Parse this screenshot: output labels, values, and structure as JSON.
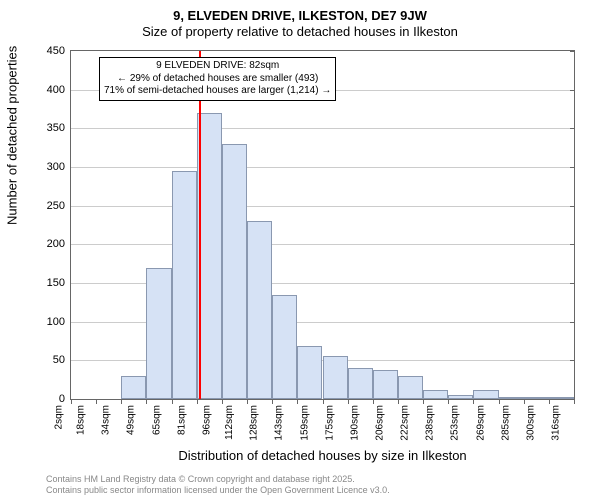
{
  "title_line1": "9, ELVEDEN DRIVE, ILKESTON, DE7 9JW",
  "title_line2": "Size of property relative to detached houses in Ilkeston",
  "chart": {
    "type": "bar",
    "ylabel": "Number of detached properties",
    "xlabel": "Distribution of detached houses by size in Ilkeston",
    "ylim": [
      0,
      450
    ],
    "ytick_step": 50,
    "xtick_labels": [
      "2sqm",
      "18sqm",
      "34sqm",
      "49sqm",
      "65sqm",
      "81sqm",
      "96sqm",
      "112sqm",
      "128sqm",
      "143sqm",
      "159sqm",
      "175sqm",
      "190sqm",
      "206sqm",
      "222sqm",
      "238sqm",
      "253sqm",
      "269sqm",
      "285sqm",
      "300sqm",
      "316sqm"
    ],
    "x_start": 2,
    "x_end": 316,
    "values": [
      0,
      0,
      30,
      170,
      295,
      370,
      330,
      230,
      135,
      68,
      55,
      40,
      38,
      30,
      12,
      5,
      12,
      3,
      3,
      3
    ],
    "bar_fill": "#d6e2f5",
    "bar_stroke": "#8a98b0",
    "grid_color": "#cccccc",
    "axis_color": "#666666",
    "background_color": "#ffffff",
    "marker": {
      "color": "#ff0000",
      "x_value": 82
    },
    "note": {
      "line1": "9 ELVEDEN DRIVE: 82sqm",
      "line2": "← 29% of detached houses are smaller (493)",
      "line3": "71% of semi-detached houses are larger (1,214) →"
    }
  },
  "credits": {
    "line1": "Contains HM Land Registry data © Crown copyright and database right 2025.",
    "line2": "Contains public sector information licensed under the Open Government Licence v3.0."
  },
  "fonts": {
    "title_size_pt": 13,
    "label_size_pt": 13,
    "tick_size_pt": 11,
    "note_size_pt": 10,
    "credit_size_pt": 9,
    "credit_color": "#888888"
  }
}
